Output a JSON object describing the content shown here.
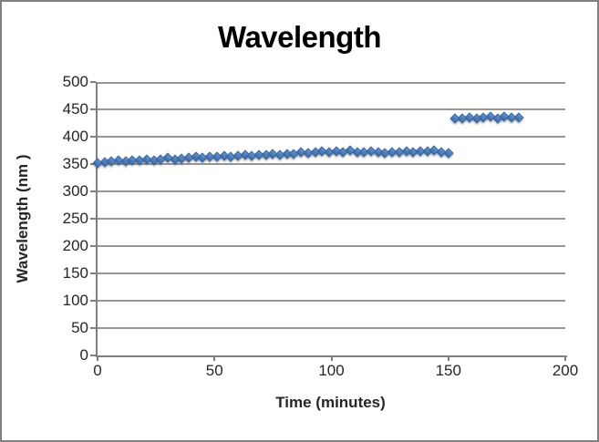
{
  "chart_data": {
    "type": "scatter",
    "title": "Wavelength",
    "xlabel": "Time (minutes)",
    "ylabel": "Wavelength (nm )",
    "xlim": [
      0,
      200
    ],
    "ylim": [
      0,
      500
    ],
    "x_ticks": [
      0,
      50,
      100,
      150,
      200
    ],
    "y_ticks": [
      0,
      50,
      100,
      150,
      200,
      250,
      300,
      350,
      400,
      450,
      500
    ],
    "grid": "horizontal-major",
    "legend_position": "none",
    "series": [
      {
        "name": "Wavelength",
        "marker": "diamond",
        "points": [
          [
            0,
            352
          ],
          [
            3,
            354
          ],
          [
            6,
            355
          ],
          [
            9,
            356
          ],
          [
            12,
            355
          ],
          [
            15,
            357
          ],
          [
            18,
            356
          ],
          [
            21,
            358
          ],
          [
            24,
            357
          ],
          [
            27,
            359
          ],
          [
            30,
            361
          ],
          [
            33,
            358
          ],
          [
            36,
            360
          ],
          [
            39,
            362
          ],
          [
            42,
            363
          ],
          [
            45,
            362
          ],
          [
            48,
            364
          ],
          [
            51,
            363
          ],
          [
            54,
            365
          ],
          [
            57,
            364
          ],
          [
            60,
            365
          ],
          [
            63,
            366
          ],
          [
            66,
            365
          ],
          [
            69,
            367
          ],
          [
            72,
            366
          ],
          [
            75,
            368
          ],
          [
            78,
            367
          ],
          [
            81,
            368
          ],
          [
            84,
            369
          ],
          [
            87,
            372
          ],
          [
            90,
            370
          ],
          [
            93,
            371
          ],
          [
            96,
            373
          ],
          [
            99,
            371
          ],
          [
            102,
            374
          ],
          [
            105,
            372
          ],
          [
            108,
            375
          ],
          [
            111,
            372
          ],
          [
            114,
            371
          ],
          [
            117,
            373
          ],
          [
            120,
            372
          ],
          [
            123,
            370
          ],
          [
            126,
            372
          ],
          [
            129,
            371
          ],
          [
            132,
            373
          ],
          [
            135,
            372
          ],
          [
            138,
            374
          ],
          [
            141,
            373
          ],
          [
            144,
            375
          ],
          [
            147,
            372
          ],
          [
            150,
            370
          ],
          [
            153,
            433
          ],
          [
            156,
            434
          ],
          [
            159,
            435
          ],
          [
            162,
            434
          ],
          [
            165,
            435
          ],
          [
            168,
            436
          ],
          [
            171,
            434
          ],
          [
            174,
            436
          ],
          [
            177,
            435
          ],
          [
            180,
            435
          ]
        ]
      }
    ]
  },
  "colors": {
    "chart_border": "#808080",
    "axis_line": "#7F7F7F",
    "gridline": "#969696",
    "marker_fill": "#4F81BD",
    "marker_edge": "#36649E",
    "title_text": "#000000",
    "tick_text": "#262626"
  }
}
